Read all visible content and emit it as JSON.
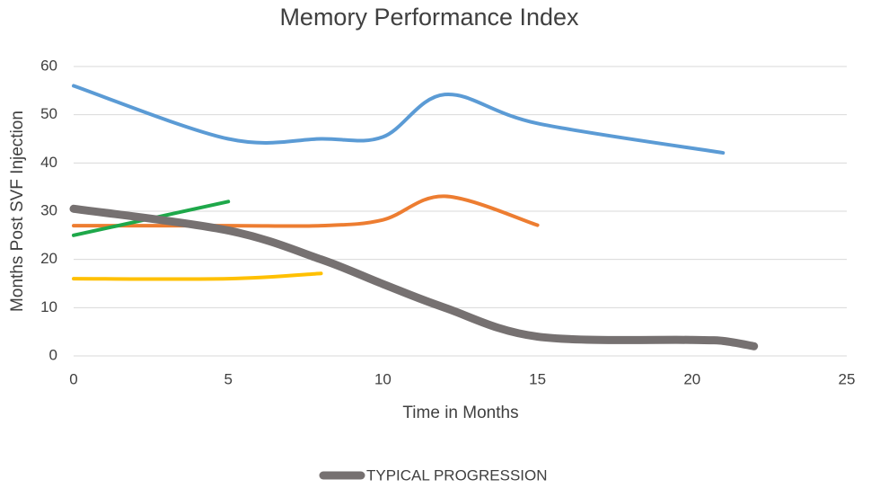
{
  "chart_data": {
    "type": "line",
    "title": "Memory Performance Index",
    "x_label": "Time in Months",
    "y_label": "Months Post SVF Injection",
    "xlim": [
      0,
      25
    ],
    "xticks": [
      0,
      5,
      10,
      15,
      20,
      25
    ],
    "ylim": [
      0,
      60
    ],
    "yticks": [
      0,
      10,
      20,
      30,
      40,
      50,
      60
    ],
    "grid": true,
    "legend": "bottom",
    "series": [
      {
        "color": "#5b9bd5",
        "x": [
          0,
          5,
          8,
          10,
          12,
          15,
          21
        ],
        "values": [
          56,
          45,
          45,
          45.4,
          54.2,
          48.2,
          42.1
        ]
      },
      {
        "color": "#ed7d31",
        "x": [
          0,
          5,
          8,
          10,
          12,
          15
        ],
        "values": [
          27,
          27,
          27,
          28.2,
          33.1,
          27.1
        ]
      },
      {
        "color": "#1ea84a",
        "x": [
          0,
          5
        ],
        "values": [
          25,
          32
        ]
      },
      {
        "color": "#ffc000",
        "x": [
          0,
          5,
          8
        ],
        "values": [
          16,
          16,
          17.1
        ]
      },
      {
        "name": "TYPICAL PROGRESSION",
        "color": "#767171",
        "width": 9,
        "x": [
          0,
          5,
          8,
          10,
          12,
          15,
          20,
          21,
          22
        ],
        "values": [
          30.5,
          26,
          20,
          14.9,
          10,
          4,
          3.3,
          3.1,
          2
        ]
      }
    ]
  }
}
